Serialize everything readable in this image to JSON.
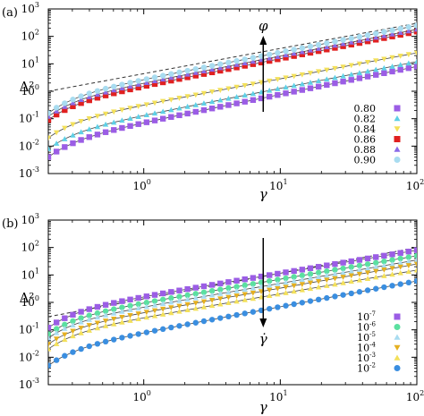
{
  "chart_data": [
    {
      "panel_label": "(a)",
      "type": "scatter",
      "x_scale": "log",
      "y_scale": "log",
      "xlim": [
        0.2,
        100
      ],
      "ylim": [
        0.001,
        1000
      ],
      "xlabel": "γ",
      "ylabel": "Δ²",
      "x_ticks": [
        {
          "value": 1,
          "base": "10",
          "exp": "0"
        },
        {
          "value": 10,
          "base": "10",
          "exp": "1"
        },
        {
          "value": 100,
          "base": "10",
          "exp": "2"
        }
      ],
      "y_ticks": [
        {
          "value": 0.001,
          "base": "10",
          "exp": "-3"
        },
        {
          "value": 0.01,
          "base": "10",
          "exp": "-2"
        },
        {
          "value": 0.1,
          "base": "10",
          "exp": "-1"
        },
        {
          "value": 1,
          "base": "10",
          "exp": "0"
        },
        {
          "value": 10,
          "base": "10",
          "exp": "1"
        },
        {
          "value": 100,
          "base": "10",
          "exp": "2"
        },
        {
          "value": 1000,
          "base": "10",
          "exp": "3"
        }
      ],
      "arrow_label": "φ",
      "arrow_direction": "up",
      "legend_position": "bottom-right",
      "reference_line": {
        "style": "dashed",
        "x": [
          0.2,
          100
        ],
        "y": [
          1.0,
          300
        ]
      },
      "series": [
        {
          "name": "0.80",
          "marker": "square",
          "color": "#9b5de5",
          "y_at_start": 0.004,
          "y_at_end": 8
        },
        {
          "name": "0.82",
          "marker": "triangle-up",
          "color": "#5fd0e6",
          "y_at_start": 0.008,
          "y_at_end": 12
        },
        {
          "name": "0.84",
          "marker": "triangle-down",
          "color": "#f3e05a",
          "y_at_start": 0.02,
          "y_at_end": 25
        },
        {
          "name": "0.86",
          "marker": "square",
          "color": "#e02020",
          "y_at_start": 0.09,
          "y_at_end": 150
        },
        {
          "name": "0.88",
          "marker": "triangle-up",
          "color": "#8a6ae8",
          "y_at_start": 0.12,
          "y_at_end": 180
        },
        {
          "name": "0.90",
          "marker": "circle",
          "color": "#a8dcf0",
          "y_at_start": 0.16,
          "y_at_end": 250
        }
      ]
    },
    {
      "panel_label": "(b)",
      "type": "scatter",
      "x_scale": "log",
      "y_scale": "log",
      "xlim": [
        0.2,
        100
      ],
      "ylim": [
        0.001,
        1000
      ],
      "xlabel": "γ",
      "ylabel": "Δ²",
      "x_ticks": [
        {
          "value": 1,
          "base": "10",
          "exp": "0"
        },
        {
          "value": 10,
          "base": "10",
          "exp": "1"
        },
        {
          "value": 100,
          "base": "10",
          "exp": "2"
        }
      ],
      "y_ticks": [
        {
          "value": 0.001,
          "base": "10",
          "exp": "-3"
        },
        {
          "value": 0.01,
          "base": "10",
          "exp": "-2"
        },
        {
          "value": 0.1,
          "base": "10",
          "exp": "-1"
        },
        {
          "value": 1,
          "base": "10",
          "exp": "0"
        },
        {
          "value": 10,
          "base": "10",
          "exp": "1"
        },
        {
          "value": 100,
          "base": "10",
          "exp": "2"
        },
        {
          "value": 1000,
          "base": "10",
          "exp": "3"
        }
      ],
      "arrow_label": "γ̇",
      "arrow_direction": "down",
      "legend_position": "bottom-right",
      "reference_line": {
        "style": "dashed",
        "x": [
          0.2,
          100
        ],
        "y": [
          0.3,
          100
        ]
      },
      "series": [
        {
          "name": "10",
          "name_exp": "-7",
          "marker": "square",
          "color": "#9b5de5",
          "y_at_start": 0.12,
          "y_at_end": 80
        },
        {
          "name": "10",
          "name_exp": "-6",
          "marker": "circle",
          "color": "#5be0a0",
          "y_at_start": 0.07,
          "y_at_end": 50
        },
        {
          "name": "10",
          "name_exp": "-5",
          "marker": "triangle-up",
          "color": "#a8dcf0",
          "y_at_start": 0.05,
          "y_at_end": 35
        },
        {
          "name": "10",
          "name_exp": "-4",
          "marker": "triangle-down",
          "color": "#e5b020",
          "y_at_start": 0.03,
          "y_at_end": 25
        },
        {
          "name": "10",
          "name_exp": "-3",
          "marker": "triangle-up",
          "color": "#f3e05a",
          "y_at_start": 0.02,
          "y_at_end": 15
        },
        {
          "name": "10",
          "name_exp": "-2",
          "marker": "circle",
          "color": "#3a8ee0",
          "y_at_start": 0.005,
          "y_at_end": 6
        }
      ]
    }
  ]
}
